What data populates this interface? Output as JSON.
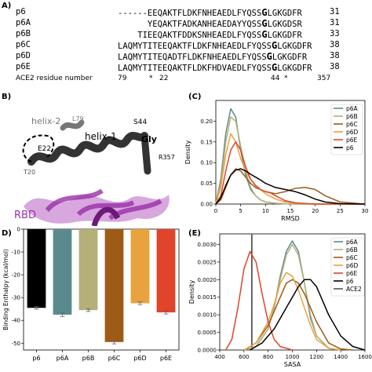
{
  "panels": {
    "a": "A)",
    "b": "B)",
    "c": "(C)",
    "d": "D)",
    "e": "(E)"
  },
  "sequences": [
    {
      "name": "p6",
      "seq": "------EEQAKTFLDKFNHEAEDLFYQSSGLGKGDFR",
      "end": "31"
    },
    {
      "name": "p6A",
      "seq": "      YEQAKTFADKANHEAEDAYYQSSGLGKGDSR",
      "end": "31"
    },
    {
      "name": "p6B",
      "seq": "    TIEEQAKTFDDKSNHEAEDLFYQSSGLGKGDFR",
      "end": "33"
    },
    {
      "name": "p6C",
      "seq": "LAQMYTITEEQAKTFLDKFNHEAEDLFYQSSGLGKGDFR",
      "end": "38"
    },
    {
      "name": "p6D",
      "seq": "LAQMYTITEQADTFLDKFNHEAEDLFYQSSGLGKGDFR",
      "end": "38"
    },
    {
      "name": "p6E",
      "seq": "LAQMYTITEEQAKTFLDKFHDVAEDLFYQSSGLGKGDFR",
      "end": "38"
    }
  ],
  "residue_row": {
    "label": "ACE2 residue number",
    "n79": "79",
    "star1": "*",
    "n22": "22",
    "n44": "44",
    "star2": "*",
    "n357": "357"
  },
  "structure": {
    "helix2": "helix-2",
    "l79": "L79",
    "helix1": "helix-1",
    "s44": "S44",
    "gly": "Gly",
    "e22": "E22",
    "r357": "R357",
    "t20": "T20",
    "rbd": "RBD",
    "colors": {
      "helix": "#333333",
      "rbd": "#9b30a8",
      "rbd_label": "#9b30a8"
    }
  },
  "chart_data": [
    {
      "type": "line",
      "panel": "C",
      "xlabel": "RMSD",
      "ylabel": "Density",
      "xlim": [
        0,
        30
      ],
      "ylim": [
        0,
        0.25
      ],
      "xticks": [
        "0",
        "5",
        "10",
        "15",
        "20",
        "25",
        "30"
      ],
      "yticks": [
        "0.00",
        "0.05",
        "0.10",
        "0.15",
        "0.20"
      ],
      "legend_position": "top-right",
      "series": [
        {
          "name": "p6A",
          "color": "#5b8a8e",
          "x": [
            0,
            1,
            2,
            3,
            4,
            5,
            6,
            7,
            8,
            9,
            10,
            12,
            15,
            20,
            30
          ],
          "y": [
            0,
            0.06,
            0.17,
            0.23,
            0.21,
            0.13,
            0.07,
            0.035,
            0.02,
            0.01,
            0.005,
            0.002,
            0,
            0,
            0
          ]
        },
        {
          "name": "p6B",
          "color": "#b5b07a",
          "x": [
            0,
            1,
            2,
            3,
            4,
            5,
            6,
            7,
            8,
            9,
            10,
            12,
            15,
            20,
            30
          ],
          "y": [
            0,
            0.05,
            0.15,
            0.21,
            0.2,
            0.14,
            0.08,
            0.04,
            0.02,
            0.01,
            0.005,
            0.002,
            0,
            0,
            0
          ]
        },
        {
          "name": "p6C",
          "color": "#9e5a17",
          "x": [
            0,
            1,
            2,
            3,
            4,
            5,
            6,
            7,
            8,
            10,
            12,
            14,
            16,
            18,
            20,
            22,
            25,
            30
          ],
          "y": [
            0,
            0.01,
            0.04,
            0.07,
            0.085,
            0.08,
            0.065,
            0.05,
            0.04,
            0.03,
            0.025,
            0.03,
            0.038,
            0.04,
            0.035,
            0.02,
            0.005,
            0
          ]
        },
        {
          "name": "p6D",
          "color": "#e8a23e",
          "x": [
            0,
            1,
            2,
            3,
            4,
            5,
            6,
            7,
            8,
            9,
            10,
            12,
            14,
            16,
            20,
            30
          ],
          "y": [
            0,
            0.04,
            0.12,
            0.17,
            0.15,
            0.11,
            0.08,
            0.06,
            0.045,
            0.035,
            0.025,
            0.012,
            0.005,
            0.002,
            0,
            0
          ]
        },
        {
          "name": "p6E",
          "color": "#e0442b",
          "x": [
            0,
            1,
            2,
            3,
            4,
            5,
            6,
            7,
            8,
            9,
            10,
            11,
            12,
            14,
            16,
            20,
            30
          ],
          "y": [
            0,
            0.02,
            0.08,
            0.13,
            0.15,
            0.13,
            0.09,
            0.06,
            0.045,
            0.035,
            0.03,
            0.027,
            0.02,
            0.008,
            0.003,
            0,
            0
          ]
        },
        {
          "name": "p6",
          "color": "#000000",
          "x": [
            0,
            1,
            2,
            3,
            4,
            5,
            6,
            7,
            8,
            9,
            10,
            12,
            14,
            16,
            18,
            20,
            22,
            25,
            30
          ],
          "y": [
            0,
            0.015,
            0.045,
            0.07,
            0.082,
            0.085,
            0.08,
            0.072,
            0.065,
            0.058,
            0.05,
            0.04,
            0.035,
            0.03,
            0.022,
            0.012,
            0.005,
            0.001,
            0
          ]
        }
      ]
    },
    {
      "type": "bar",
      "panel": "D",
      "ylabel": "Binding Enthalpy (kcal/mol)",
      "categories": [
        "p6",
        "p6A",
        "p6B",
        "p6C",
        "p6D",
        "p6E"
      ],
      "values": [
        -34.5,
        -37.5,
        -35.5,
        -49.5,
        -32.5,
        -36.5
      ],
      "errors": [
        0.6,
        0.8,
        0.6,
        0.8,
        0.6,
        0.7
      ],
      "colors": [
        "#000000",
        "#5b8a8e",
        "#b5b07a",
        "#9e5a17",
        "#e8a23e",
        "#e0442b"
      ],
      "ylim": [
        -53,
        0
      ],
      "yticks": [
        "0",
        "-10",
        "-20",
        "-30",
        "-40",
        "-50"
      ]
    },
    {
      "type": "line",
      "panel": "E",
      "xlabel": "SASA",
      "ylabel": "Density",
      "xlim": [
        400,
        1600
      ],
      "ylim": [
        0,
        0.0033
      ],
      "xticks": [
        "400",
        "600",
        "800",
        "1000",
        "1200",
        "1400",
        "1600"
      ],
      "yticks": [
        "0.0000",
        "0.0005",
        "0.0010",
        "0.0015",
        "0.0020",
        "0.0025",
        "0.0030"
      ],
      "vline_ace2": 665,
      "legend_position": "top-right",
      "series": [
        {
          "name": "p6A",
          "color": "#5b8a8e",
          "x": [
            600,
            700,
            800,
            850,
            900,
            950,
            1000,
            1050,
            1100,
            1150,
            1200,
            1300,
            1400
          ],
          "y": [
            0,
            0.0001,
            0.0006,
            0.0012,
            0.0021,
            0.0028,
            0.0031,
            0.0028,
            0.0019,
            0.0009,
            0.0004,
            5e-05,
            0
          ]
        },
        {
          "name": "p6B",
          "color": "#b5b07a",
          "x": [
            600,
            700,
            800,
            850,
            900,
            950,
            1000,
            1050,
            1100,
            1150,
            1200,
            1300,
            1400
          ],
          "y": [
            0,
            0.0001,
            0.0006,
            0.0012,
            0.002,
            0.0027,
            0.003,
            0.0027,
            0.0019,
            0.001,
            0.0004,
            5e-05,
            0
          ]
        },
        {
          "name": "p6C",
          "color": "#9e5a17",
          "x": [
            600,
            700,
            800,
            900,
            950,
            1000,
            1050,
            1100,
            1150,
            1200,
            1300,
            1400,
            1500
          ],
          "y": [
            0,
            0.0002,
            0.0007,
            0.0015,
            0.0019,
            0.002,
            0.0019,
            0.0016,
            0.0012,
            0.0008,
            0.0002,
            3e-05,
            0
          ]
        },
        {
          "name": "p6D",
          "color": "#e8a23e",
          "x": [
            600,
            700,
            800,
            850,
            900,
            950,
            1000,
            1050,
            1100,
            1150,
            1200,
            1300,
            1400
          ],
          "y": [
            0,
            0.0002,
            0.0008,
            0.0013,
            0.0019,
            0.0022,
            0.0021,
            0.0017,
            0.0012,
            0.0007,
            0.0003,
            5e-05,
            0
          ]
        },
        {
          "name": "p6E",
          "color": "#e0442b",
          "x": [
            450,
            500,
            550,
            600,
            650,
            700,
            750,
            800,
            850,
            900,
            1000
          ],
          "y": [
            0,
            0.0003,
            0.0012,
            0.0023,
            0.0028,
            0.0025,
            0.0016,
            0.0008,
            0.0003,
            0.0001,
            0
          ]
        },
        {
          "name": "p6",
          "color": "#000000",
          "x": [
            650,
            750,
            850,
            950,
            1000,
            1050,
            1100,
            1150,
            1200,
            1250,
            1300,
            1400,
            1500,
            1600
          ],
          "y": [
            0,
            0.0002,
            0.0006,
            0.0012,
            0.0015,
            0.0018,
            0.002,
            0.002,
            0.0018,
            0.0014,
            0.001,
            0.0004,
            0.0001,
            0
          ]
        }
      ],
      "ace2_label": "ACE2",
      "ace2_color": "#555555"
    }
  ]
}
